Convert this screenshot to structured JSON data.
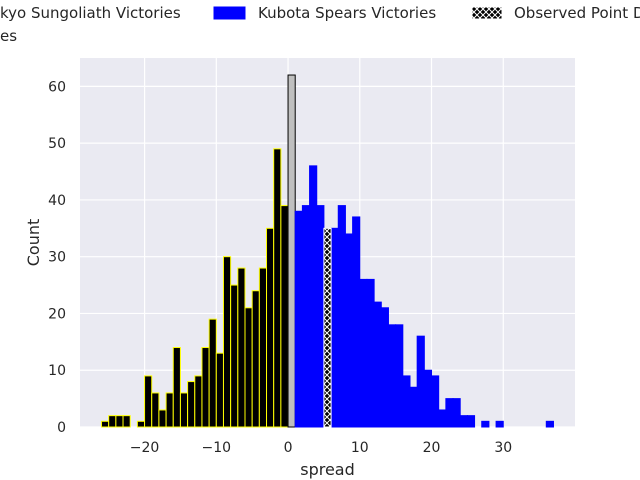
{
  "chart_data": {
    "type": "bar",
    "xlabel": "spread",
    "ylabel": "Count",
    "xlim": [
      -29,
      40
    ],
    "ylim": [
      0,
      65
    ],
    "xticks": [
      -20,
      -10,
      0,
      10,
      20,
      30
    ],
    "xtick_labels": [
      "−20",
      "−10",
      "0",
      "10",
      "20",
      "30"
    ],
    "yticks": [
      0,
      10,
      20,
      30,
      40,
      50,
      60
    ],
    "ytick_labels": [
      "0",
      "10",
      "20",
      "30",
      "40",
      "50",
      "60"
    ],
    "grid": true,
    "legend_placement": "top, above plot (partially clipped)",
    "series": [
      {
        "name": "Tokyo Sungoliath Victories",
        "visible_legend_text": "kyo Sungoliath Victories",
        "fill_color": "#000000",
        "edge_color": "#ffff00",
        "bins": [
          [
            -26,
            1
          ],
          [
            -25,
            2
          ],
          [
            -24,
            2
          ],
          [
            -23,
            2
          ],
          [
            -21,
            1
          ],
          [
            -20,
            9
          ],
          [
            -19,
            6
          ],
          [
            -18,
            3
          ],
          [
            -17,
            6
          ],
          [
            -16,
            14
          ],
          [
            -15,
            6
          ],
          [
            -14,
            8
          ],
          [
            -13,
            9
          ],
          [
            -12,
            14
          ],
          [
            -11,
            19
          ],
          [
            -10,
            13
          ],
          [
            -9,
            30
          ],
          [
            -8,
            25
          ],
          [
            -7,
            28
          ],
          [
            -6,
            21
          ],
          [
            -5,
            24
          ],
          [
            -4,
            28
          ],
          [
            -3,
            35
          ],
          [
            -2,
            49
          ],
          [
            -1,
            39
          ]
        ]
      },
      {
        "name": "Ties",
        "visible_legend_text": "es",
        "fill_color": "#bfbfbf",
        "edge_color": "#000000",
        "bins": [
          [
            0,
            62
          ]
        ]
      },
      {
        "name": "Kubota Spears Victories",
        "fill_color": "#0000ff",
        "edge_color": "#0000ff",
        "bins": [
          [
            1,
            38
          ],
          [
            2,
            39
          ],
          [
            3,
            46
          ],
          [
            4,
            39
          ],
          [
            6,
            35
          ],
          [
            7,
            39
          ],
          [
            8,
            34
          ],
          [
            9,
            37
          ],
          [
            10,
            26
          ],
          [
            11,
            26
          ],
          [
            12,
            22
          ],
          [
            13,
            21
          ],
          [
            14,
            18
          ],
          [
            15,
            18
          ],
          [
            16,
            9
          ],
          [
            17,
            7
          ],
          [
            18,
            16
          ],
          [
            19,
            10
          ],
          [
            20,
            9
          ],
          [
            21,
            3
          ],
          [
            22,
            5
          ],
          [
            23,
            5
          ],
          [
            24,
            2
          ],
          [
            25,
            2
          ],
          [
            27,
            1
          ],
          [
            29,
            1
          ],
          [
            36,
            1
          ]
        ]
      },
      {
        "name": "Observed Point Differential",
        "visible_legend_text": "Observed Point D",
        "fill_color": "#000000",
        "edge_color": "#ffffff",
        "hatch": "x",
        "bins": [
          [
            5,
            35
          ]
        ]
      }
    ]
  }
}
